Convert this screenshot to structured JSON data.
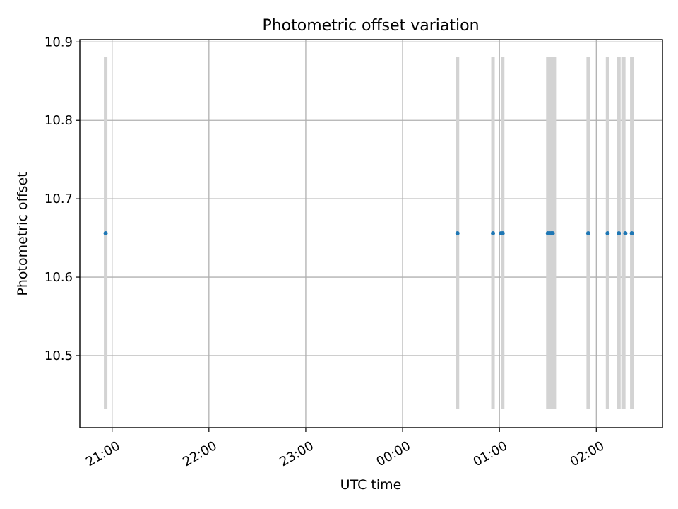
{
  "chart_data": {
    "type": "scatter",
    "title": "Photometric offset variation",
    "xlabel": "UTC time",
    "ylabel": "Photometric offset",
    "x_ticks": [
      "21:00",
      "22:00",
      "23:00",
      "00:00",
      "01:00",
      "02:00"
    ],
    "y_ticks": [
      "10.5",
      "10.6",
      "10.7",
      "10.8",
      "10.9"
    ],
    "xlim": [
      "20:40",
      "26:41"
    ],
    "ylim": [
      10.408,
      10.903
    ],
    "grid": true,
    "colors": {
      "points": "#1f77b4",
      "bands": "#d3d3d3"
    },
    "points": {
      "x": [
        "20:56",
        "00:34",
        "00:56",
        "01:01",
        "01:02",
        "01:30",
        "01:31",
        "01:32",
        "01:33",
        "01:55",
        "02:07",
        "02:14",
        "02:18",
        "02:22"
      ],
      "y": [
        10.656,
        10.656,
        10.656,
        10.656,
        10.656,
        10.656,
        10.656,
        10.656,
        10.656,
        10.656,
        10.656,
        10.656,
        10.656,
        10.656
      ]
    },
    "bands": {
      "ymin": 10.432,
      "ymax": 10.881,
      "x": [
        "20:56",
        "00:34",
        "00:56",
        "01:02",
        "01:30",
        "01:31",
        "01:32",
        "01:33",
        "01:34",
        "01:55",
        "02:07",
        "02:14",
        "02:17",
        "02:22"
      ]
    }
  }
}
